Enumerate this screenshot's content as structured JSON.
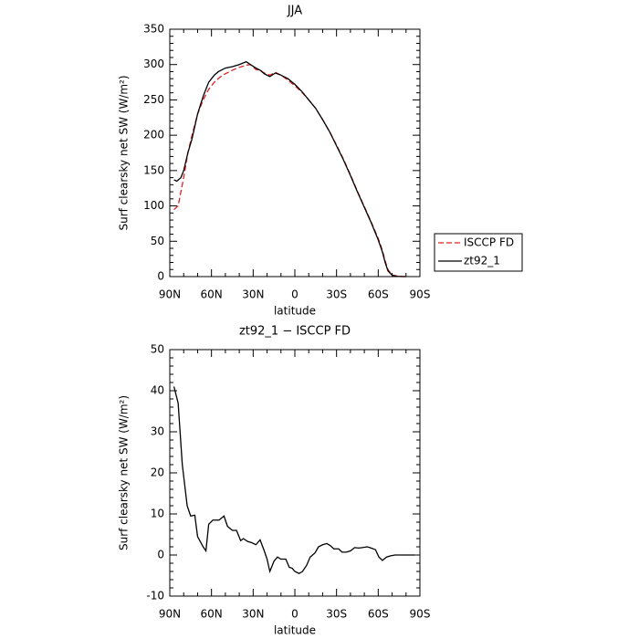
{
  "chart_data": [
    {
      "type": "line",
      "title": "JJA",
      "xlabel": "latitude",
      "ylabel": "Surf clearsky net SW (W/m²)",
      "xlim": [
        90,
        -90
      ],
      "xticks": [
        {
          "value": 90,
          "label": "90N"
        },
        {
          "value": 60,
          "label": "60N"
        },
        {
          "value": 30,
          "label": "30N"
        },
        0,
        {
          "value": -30,
          "label": "30S"
        },
        {
          "value": -60,
          "label": "60S"
        },
        {
          "value": -90,
          "label": "90S"
        }
      ],
      "ylim": [
        0,
        350
      ],
      "yticks": [
        0,
        50,
        100,
        150,
        200,
        250,
        300,
        350
      ],
      "legend": "right",
      "series": [
        {
          "name": "ISCCP FD",
          "color": "#e02020",
          "dash": true,
          "x": [
            87,
            84,
            80,
            77,
            74,
            70,
            66,
            62,
            58,
            54,
            50,
            45,
            40,
            35,
            32,
            28,
            25,
            22,
            18,
            14,
            10,
            5,
            0,
            -5,
            -10,
            -15,
            -20,
            -25,
            -30,
            -35,
            -40,
            -45,
            -50,
            -55,
            -60,
            -63,
            -65,
            -67,
            -70,
            -75,
            -80
          ],
          "values": [
            95,
            100,
            140,
            175,
            200,
            230,
            250,
            265,
            275,
            282,
            287,
            292,
            296,
            299,
            300,
            293,
            292,
            288,
            285,
            289,
            285,
            278,
            270,
            261,
            250,
            238,
            222,
            205,
            186,
            166,
            144,
            121,
            99,
            77,
            54,
            37,
            22,
            10,
            2,
            0.5,
            0
          ]
        },
        {
          "name": "zt92_1",
          "color": "#000000",
          "dash": false,
          "x": [
            87,
            85,
            82,
            80,
            77,
            74,
            70,
            66,
            62,
            58,
            55,
            50,
            45,
            40,
            35,
            32,
            28,
            25,
            22,
            18,
            14,
            10,
            5,
            0,
            -5,
            -10,
            -15,
            -20,
            -25,
            -30,
            -35,
            -40,
            -45,
            -50,
            -55,
            -60,
            -63,
            -65,
            -67,
            -70,
            -73,
            -77,
            -80
          ],
          "values": [
            137,
            135,
            140,
            150,
            175,
            195,
            230,
            255,
            275,
            285,
            290,
            295,
            297,
            300,
            304,
            300,
            295,
            292,
            287,
            283,
            288,
            285,
            280,
            272,
            262,
            250,
            238,
            222,
            205,
            185,
            165,
            143,
            120,
            98,
            76,
            52,
            35,
            20,
            8,
            2,
            0.5,
            0,
            0
          ]
        }
      ]
    },
    {
      "type": "line",
      "title": "zt92_1 − ISCCP FD",
      "xlabel": "latitude",
      "ylabel": "Surf clearsky net SW (W/m²)",
      "xlim": [
        90,
        -90
      ],
      "xticks": [
        {
          "value": 90,
          "label": "90N"
        },
        {
          "value": 60,
          "label": "60N"
        },
        {
          "value": 30,
          "label": "30N"
        },
        0,
        {
          "value": -30,
          "label": "30S"
        },
        {
          "value": -60,
          "label": "60S"
        },
        {
          "value": -90,
          "label": "90S"
        }
      ],
      "ylim": [
        -10,
        50
      ],
      "yticks": [
        -10,
        0,
        10,
        20,
        30,
        40,
        50
      ],
      "series": [
        {
          "color": "#000000",
          "dash": false,
          "x": [
            87,
            84,
            81,
            77.5,
            75,
            72,
            70,
            66,
            64,
            62,
            59,
            54.5,
            51,
            48.5,
            45,
            42,
            39,
            37,
            34,
            31,
            28,
            25,
            22,
            20,
            18,
            15,
            12.5,
            10,
            6.5,
            4,
            2,
            0,
            -3,
            -5.5,
            -8.5,
            -11,
            -14.5,
            -17,
            -20,
            -23,
            -25.5,
            -28,
            -31.5,
            -34,
            -37,
            -40,
            -43,
            -46,
            -48.5,
            -52,
            -54,
            -58,
            -60.5,
            -63,
            -66,
            -69,
            -72,
            -75,
            -77,
            -81,
            -86
          ],
          "values": [
            41,
            37,
            22,
            12,
            9.5,
            9.7,
            4.5,
            2,
            1,
            7.5,
            8.5,
            8.5,
            9.5,
            7,
            6,
            6,
            3.5,
            4,
            3.3,
            3,
            2.5,
            3.7,
            1,
            -1,
            -4,
            -1.5,
            -0.5,
            -1,
            -1,
            -3,
            -3.2,
            -4,
            -4.5,
            -4,
            -2.5,
            -0.5,
            0.5,
            2,
            2.5,
            2.8,
            2.3,
            1.5,
            1.5,
            0.7,
            0.7,
            1,
            1.8,
            1.7,
            1.8,
            2,
            1.8,
            1.3,
            -0.5,
            -1.3,
            -0.5,
            -0.2,
            0,
            0,
            0,
            0,
            0
          ]
        }
      ]
    }
  ]
}
